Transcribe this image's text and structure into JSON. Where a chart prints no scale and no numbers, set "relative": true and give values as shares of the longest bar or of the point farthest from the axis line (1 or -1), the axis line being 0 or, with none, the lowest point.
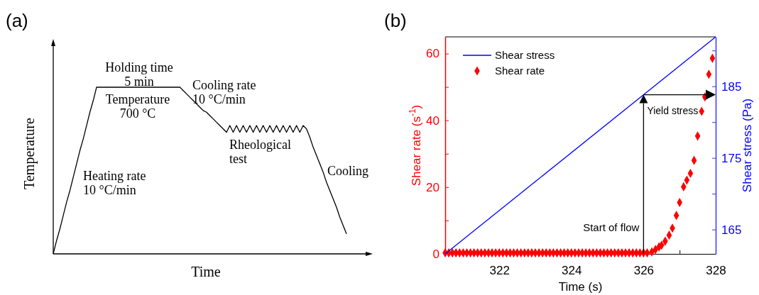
{
  "chart_data": [
    {
      "type": "line",
      "title": "(a)",
      "xlabel": "Time",
      "ylabel": "Temperature",
      "relative": true,
      "color": "#000000",
      "categories": [
        null,
        null,
        null,
        null,
        null,
        null,
        null,
        null,
        null,
        null,
        null,
        null,
        null,
        null,
        null,
        null,
        null,
        null,
        null,
        null,
        null,
        null,
        null,
        null,
        null,
        null,
        null,
        null,
        null,
        null,
        null,
        null,
        null,
        null,
        null,
        null,
        null,
        null,
        null,
        null,
        null,
        null,
        null,
        null,
        null,
        null,
        null,
        null,
        null,
        null,
        null,
        null,
        null,
        null,
        null,
        null,
        null,
        null,
        null,
        null,
        null,
        null,
        null,
        null,
        null,
        null,
        null,
        null,
        null,
        null,
        null,
        null,
        null,
        null,
        null,
        null,
        null,
        null,
        null,
        null,
        null,
        null,
        null,
        null,
        null,
        null,
        null,
        null,
        null
      ],
      "values": [
        0,
        0.08,
        0.15,
        0.23,
        0.31,
        0.38,
        0.46,
        0.54,
        0.62,
        0.69,
        0.77,
        0.85,
        0.92,
        1,
        1,
        1,
        1,
        1,
        1,
        1,
        1,
        1,
        1,
        1,
        1,
        1,
        1,
        1,
        1,
        1,
        1,
        1,
        1,
        1,
        1,
        1,
        1,
        1,
        1,
        0.98,
        0.96,
        0.94,
        0.92,
        0.9,
        0.88,
        0.86,
        0.85,
        0.83,
        0.81,
        0.79,
        0.77,
        0.75,
        0.73,
        0.77,
        0.73,
        0.77,
        0.73,
        0.77,
        0.73,
        0.77,
        0.73,
        0.77,
        0.73,
        0.77,
        0.73,
        0.77,
        0.73,
        0.77,
        0.73,
        0.77,
        0.73,
        0.77,
        0.73,
        0.77,
        0.73,
        0.77,
        0.75,
        0.7,
        0.64,
        0.59,
        0.54,
        0.49,
        0.43,
        0.38,
        0.33,
        0.28,
        0.22,
        0.17,
        0.12
      ],
      "annotations": [
        "Holding time\n5 min",
        "Temperature\n700 °C",
        "Cooling rate\n10 °C/min",
        "Rheological\ntest",
        "Heating rate\n10 °C/min",
        "Cooling"
      ]
    },
    {
      "type": "scatter",
      "title": "(b)",
      "xlabel": "Time (s)",
      "ylabel": "Shear rate (s$^{-1}$)",
      "y2label": "Shear stress (Pa)",
      "legend": "top left",
      "xlim": [
        320.5,
        328
      ],
      "xticks": [
        322,
        324,
        326,
        {
          "value": 327,
          "label": null
        },
        328
      ],
      "ylim": [
        0,
        65
      ],
      "yticks": [
        0,
        {
          "value": 10,
          "label": null
        },
        20,
        {
          "value": 30,
          "label": null
        },
        40,
        {
          "value": 50,
          "label": null
        },
        60
      ],
      "y2lim": [
        161.6,
        191.9
      ],
      "y2ticks": [
        165,
        {
          "value": 170,
          "label": null
        },
        175,
        {
          "value": 180,
          "label": null
        },
        185,
        {
          "value": 190,
          "label": null
        }
      ],
      "series": [
        {
          "name": "Shear stress",
          "type": "line",
          "axis": "y2",
          "color": "#0000ff",
          "marker": "none",
          "x": [
            320.5,
            328
          ],
          "values": [
            161.6,
            191.9
          ]
        },
        {
          "name": "Shear rate",
          "type": "scatter",
          "axis": "y",
          "color": "#ff0000",
          "marker": "diamond",
          "x": [
            320.5,
            320.6,
            320.7,
            320.8,
            320.9,
            321.0,
            321.1,
            321.2,
            321.3,
            321.4,
            321.5,
            321.6,
            321.7,
            321.8,
            321.9,
            322.0,
            322.1,
            322.2,
            322.3,
            322.4,
            322.5,
            322.6,
            322.7,
            322.8,
            322.9,
            323.0,
            323.1,
            323.2,
            323.3,
            323.4,
            323.5,
            323.6,
            323.7,
            323.8,
            323.9,
            324.0,
            324.1,
            324.2,
            324.3,
            324.4,
            324.5,
            324.6,
            324.7,
            324.8,
            324.9,
            325.0,
            325.1,
            325.2,
            325.3,
            325.4,
            325.5,
            325.6,
            325.7,
            325.8,
            325.9,
            326.0,
            326.1,
            326.23,
            326.33,
            326.43,
            326.5,
            326.6,
            326.71,
            326.8,
            326.91,
            327.0,
            327.11,
            327.2,
            327.3,
            327.4,
            327.5,
            327.61,
            327.7,
            327.81,
            327.91
          ],
          "values": [
            0.3,
            0.3,
            0.3,
            0.3,
            0.3,
            0.3,
            0.3,
            0.3,
            0.3,
            0.3,
            0.3,
            0.3,
            0.3,
            0.3,
            0.3,
            0.3,
            0.3,
            0.3,
            0.3,
            0.3,
            0.3,
            0.3,
            0.3,
            0.3,
            0.3,
            0.3,
            0.3,
            0.3,
            0.3,
            0.3,
            0.3,
            0.3,
            0.3,
            0.3,
            0.3,
            0.3,
            0.3,
            0.3,
            0.3,
            0.3,
            0.3,
            0.3,
            0.3,
            0.3,
            0.3,
            0.3,
            0.3,
            0.3,
            0.3,
            0.3,
            0.3,
            0.3,
            0.3,
            0.3,
            0.3,
            0.3,
            0.3,
            0.6,
            1.3,
            2.1,
            2.6,
            3.8,
            5.6,
            7.7,
            11.5,
            15.4,
            20.1,
            22.1,
            24.1,
            28.0,
            35.3,
            42.7,
            47.0,
            53.8,
            58.6
          ]
        }
      ],
      "annotations": [
        {
          "text": "Start of flow",
          "x": 326,
          "y": 0
        },
        "Yield stress"
      ]
    }
  ]
}
